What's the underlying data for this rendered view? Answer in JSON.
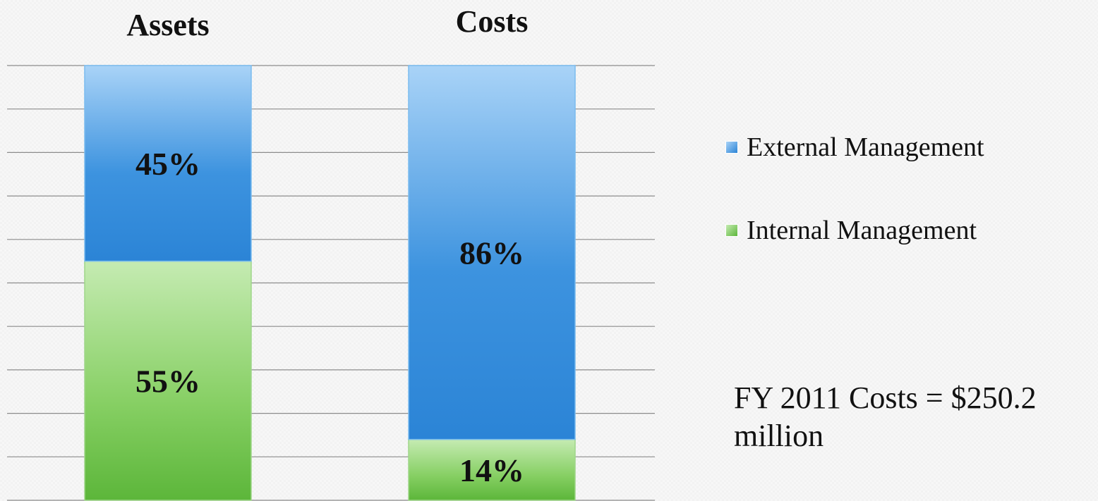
{
  "chart_data": {
    "type": "bar",
    "stacked": true,
    "normalized_percent": true,
    "categories": [
      "Assets",
      "Costs"
    ],
    "series": [
      {
        "name": "Internal Management",
        "values": [
          55,
          14
        ],
        "labels": [
          "55%",
          "14%"
        ],
        "color": "#6cc24a"
      },
      {
        "name": "External Management",
        "values": [
          45,
          86
        ],
        "labels": [
          "45%",
          "86%"
        ],
        "color": "#3a8fdc"
      }
    ],
    "ylim": [
      0,
      100
    ],
    "grid": true,
    "legend_position": "right"
  },
  "annotation": "FY 2011 Costs = $250.2 million",
  "colors": {
    "external_top": "#a9d3f7",
    "external_mid": "#3d93df",
    "internal_top": "#c5ebb2",
    "internal_mid": "#6cc24a",
    "grid": "#8c8c8c"
  }
}
